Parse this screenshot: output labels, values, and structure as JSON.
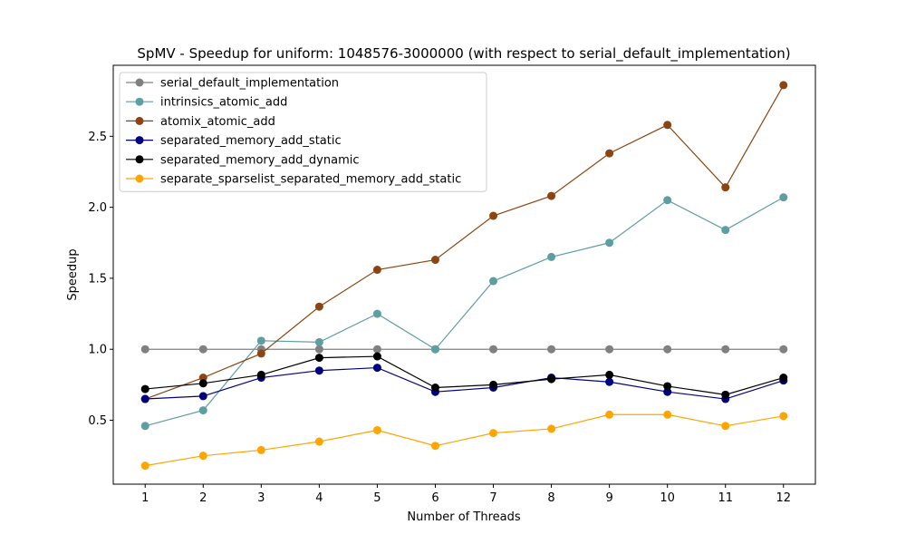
{
  "chart_data": {
    "type": "line",
    "title": "SpMV - Speedup for uniform: 1048576-3000000 (with respect to serial_default_implementation)",
    "xlabel": "Number of Threads",
    "ylabel": "Speedup",
    "x": [
      1,
      2,
      3,
      4,
      5,
      6,
      7,
      8,
      9,
      10,
      11,
      12
    ],
    "xlim": [
      0.45,
      12.55
    ],
    "ylim": [
      0.05,
      3.0
    ],
    "yticks": [
      0.5,
      1.0,
      1.5,
      2.0,
      2.5
    ],
    "ytick_labels": [
      "0.5",
      "1.0",
      "1.5",
      "2.0",
      "2.5"
    ],
    "xtick_labels": [
      "1",
      "2",
      "3",
      "4",
      "5",
      "6",
      "7",
      "8",
      "9",
      "10",
      "11",
      "12"
    ],
    "grid": false,
    "legend_position": "top-left",
    "series": [
      {
        "name": "serial_default_implementation",
        "color": "#808080",
        "values": [
          1.0,
          1.0,
          1.0,
          1.0,
          1.0,
          1.0,
          1.0,
          1.0,
          1.0,
          1.0,
          1.0,
          1.0
        ]
      },
      {
        "name": "intrinsics_atomic_add",
        "color": "#5f9ea0",
        "values": [
          0.46,
          0.57,
          1.06,
          1.05,
          1.25,
          1.0,
          1.48,
          1.65,
          1.75,
          2.05,
          1.84,
          2.07
        ]
      },
      {
        "name": "atomix_atomic_add",
        "color": "#8b4513",
        "values": [
          0.65,
          0.8,
          0.97,
          1.3,
          1.56,
          1.63,
          1.94,
          2.08,
          2.38,
          2.58,
          2.14,
          2.86
        ]
      },
      {
        "name": "separated_memory_add_static",
        "color": "#000080",
        "values": [
          0.65,
          0.67,
          0.8,
          0.85,
          0.87,
          0.7,
          0.73,
          0.8,
          0.77,
          0.7,
          0.65,
          0.78
        ]
      },
      {
        "name": "separated_memory_add_dynamic",
        "color": "#000000",
        "values": [
          0.72,
          0.76,
          0.82,
          0.94,
          0.95,
          0.73,
          0.75,
          0.79,
          0.82,
          0.74,
          0.68,
          0.8
        ]
      },
      {
        "name": "separate_sparselist_separated_memory_add_static",
        "color": "#ffa500",
        "values": [
          0.18,
          0.25,
          0.29,
          0.35,
          0.43,
          0.32,
          0.41,
          0.44,
          0.54,
          0.54,
          0.46,
          0.53
        ]
      }
    ]
  }
}
